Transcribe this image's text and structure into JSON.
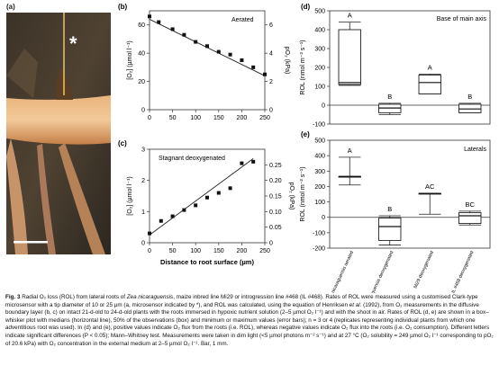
{
  "panels": {
    "a": {
      "letter": "(a)",
      "marker": "*"
    },
    "b": {
      "letter": "(b)",
      "label": "Aerated",
      "ylabel_left": "[O₂] (µmol l⁻¹)",
      "ylabel_right": "pO₂ (kPa)",
      "yticks_left": [
        "0",
        "20",
        "40",
        "60"
      ],
      "yticks_right": [
        "0",
        "2",
        "4",
        "6"
      ],
      "xticks": [
        "0",
        "50",
        "100",
        "150",
        "200",
        "250"
      ]
    },
    "c": {
      "letter": "(c)",
      "label": "Stagnant deoxygenated",
      "ylabel_left": "[O₂] (µmol l⁻¹)",
      "ylabel_right": "pO₂ (kPa)",
      "yticks_left": [
        "0",
        "1",
        "2",
        "3"
      ],
      "yticks_right": [
        "0",
        "0.05",
        "0.10",
        "0.15",
        "0.20",
        "0.25"
      ],
      "xticks": [
        "0",
        "50",
        "100",
        "150",
        "200",
        "250"
      ],
      "xlabel": "Distance to root surface (µm)"
    },
    "d": {
      "letter": "(d)",
      "label": "Base of main axis",
      "ylabel": "ROL (nmol m⁻² s⁻¹)",
      "yticks": [
        "-100",
        "0",
        "100",
        "200",
        "300",
        "400",
        "500"
      ]
    },
    "e": {
      "letter": "(e)",
      "label": "Laterals",
      "ylabel": "ROL (nmol m⁻² s⁻¹)",
      "yticks": [
        "-200",
        "-100",
        "0",
        "100",
        "200",
        "300",
        "400",
        "500"
      ],
      "categories": [
        "Z. nicaraguensis aerated",
        "Z. nicaraguensis deoxygenated",
        "Mi29 deoxygenated",
        "IL #468 deoxygenated"
      ]
    }
  },
  "chart_data": [
    {
      "type": "scatter",
      "panel": "b",
      "x": [
        0,
        20,
        50,
        75,
        100,
        125,
        150,
        175,
        200,
        225,
        250
      ],
      "y": [
        66,
        62,
        57,
        53,
        48,
        45,
        41,
        39,
        35,
        30,
        25
      ],
      "xlim": [
        0,
        250
      ],
      "ylim": [
        0,
        70
      ],
      "fit_line": [
        [
          0,
          64
        ],
        [
          250,
          24
        ]
      ]
    },
    {
      "type": "scatter",
      "panel": "c",
      "x": [
        0,
        25,
        50,
        75,
        100,
        125,
        150,
        175,
        200,
        225
      ],
      "y": [
        0.3,
        0.7,
        0.85,
        1.05,
        1.2,
        1.45,
        1.6,
        1.75,
        2.55,
        2.6
      ],
      "xlim": [
        0,
        250
      ],
      "ylim": [
        0,
        3
      ],
      "fit_line": [
        [
          0,
          0.25
        ],
        [
          225,
          2.7
        ]
      ]
    },
    {
      "type": "box",
      "panel": "d",
      "ylim": [
        -100,
        500
      ],
      "boxes": [
        {
          "letter": "A",
          "q1": 110,
          "median": 120,
          "q3": 400,
          "min": 105,
          "max": 440
        },
        {
          "letter": "B",
          "q1": -40,
          "median": -15,
          "q3": 5,
          "min": -50,
          "max": 10
        },
        {
          "letter": "A",
          "q1": 60,
          "median": 120,
          "q3": 160,
          "min": 60,
          "max": 165
        },
        {
          "letter": "B",
          "q1": -40,
          "median": -20,
          "q3": 5,
          "min": -40,
          "max": 10
        }
      ]
    },
    {
      "type": "box",
      "panel": "e",
      "ylim": [
        -200,
        500
      ],
      "boxes": [
        {
          "letter": "A",
          "q1": 265,
          "median": 265,
          "q3": 265,
          "min": 210,
          "max": 390
        },
        {
          "letter": "B",
          "q1": -150,
          "median": -60,
          "q3": -5,
          "min": -180,
          "max": 10
        },
        {
          "letter": "AC",
          "q1": 155,
          "median": 155,
          "q3": 155,
          "min": 20,
          "max": 155
        },
        {
          "letter": "BC",
          "q1": -40,
          "median": 10,
          "q3": 30,
          "min": -50,
          "max": 40
        }
      ]
    }
  ],
  "caption": {
    "label": "Fig. 3",
    "text_1": " Radial O₂ loss (ROL) from lateral roots of ",
    "species": "Zea nicaraguensis",
    "text_2": ", maize inbred line Mi29 or introgression line #468 (IL #468). Rates of ROL were measured using a customised Clark-type microsensor with a tip diameter of 10 or 25 µm (a, microsensor indicated by *), and ROL was calculated, using the equation of Henriksen ",
    "etal": "et al.",
    "text_3": " (1992), from O₂ measurements in the diffusive boundary layer (b, c) on intact 21-d-old to 24-d-old plants with the roots immersed in hypoxic nutrient solution (2–5 µmol O₂ l⁻¹) and with the shoot in air. Rates of ROL (d, e) are shown in a box–whisker plot with medians (horizontal line), 50% of the observations (box) and minimum or maximum values (error bars); n = 3 or 4 (replicates representing individual plants from which one adventitious root was used). In (d) and (e), positive values indicate O₂ flux from the roots (i.e. ROL), whereas negative values indicate O₂ flux into the roots (i.e. O₂ consumption). Different letters indicate significant differences (P < 0.05); Mann–Whitney test. Measurements were taken in dim light (<5 µmol photons m⁻² s⁻¹) and at 27 °C (O₂ solubility = 249 µmol O₂ l⁻¹ corresponding to pO₂ of 20.6 kPa) with O₂ concentration in the external medium at 2–5 µmol O₂ l⁻¹. Bar, 1 mm."
  }
}
